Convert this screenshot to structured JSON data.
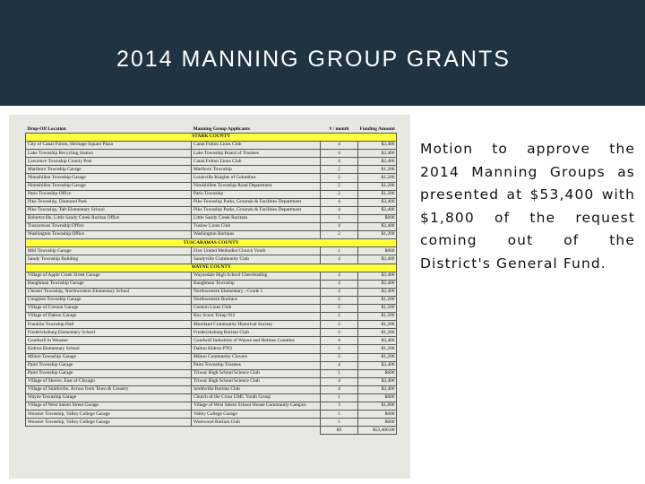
{
  "slide": {
    "title": "2014 MANNING GROUP GRANTS",
    "motion": "Motion to approve the 2014 Manning Groups as presented at $53,400 with $1,800 of the request coming out of the District's General Fund.",
    "colors": {
      "header_bg": "#1f3340",
      "sheet_bg": "#e8e8e2",
      "section_highlight": "#ffff3a"
    }
  },
  "table": {
    "headers": [
      "Drop-Off Location",
      "Manning Group Applicants",
      "# / month",
      "Funding Amount"
    ],
    "sections": [
      {
        "name": "STARK COUNTY",
        "rows": [
          [
            "City of Canal Fulton, Heritage Square Plaza",
            "Canal Fulton Lions Club",
            "4",
            "$2,400"
          ],
          [
            "Lake Township Recycling Station",
            "Lake Township Board of Trustees",
            "4",
            "$2,400"
          ],
          [
            "Lawrence Township County Post",
            "Canal Fulton Lions Club",
            "4",
            "$2,400"
          ],
          [
            "Marlboro Township Garage",
            "Marlboro Township",
            "2",
            "$1,200"
          ],
          [
            "Nimishillen Township Garage",
            "Louisville Knights of Columbus",
            "2",
            "$1,200"
          ],
          [
            "Nimishillen Township Garage",
            "Nimishillen Township Road Department",
            "2",
            "$1,200"
          ],
          [
            "Paris Township Office",
            "Paris Township",
            "2",
            "$1,200"
          ],
          [
            "Pike Township, Diamond Park",
            "Pike Township Parks, Grounds & Facilities Department",
            "4",
            "$2,400"
          ],
          [
            "Pike Township, Taft Elementary School",
            "Pike Township Parks, Grounds & Facilities Department",
            "4",
            "$2,400"
          ],
          [
            "Robertsville, Little Sandy Creek Ruritan Office",
            "Little Sandy Creek Ruritans",
            "1",
            "$600"
          ],
          [
            "Tuscarawas Township Office",
            "Tuslaw Lions Club",
            "4",
            "$2,400"
          ],
          [
            "Washington Township Office",
            "Washington Ruritans",
            "2",
            "$1,200"
          ]
        ]
      },
      {
        "name": "TUSCARAWAS COUNTY",
        "rows": [
          [
            "Mill Township Garage",
            "First United Methodist Church Youth",
            "1",
            "$600"
          ],
          [
            "Sandy Township Building",
            "Sandyville Community Club",
            "4",
            "$2,400"
          ]
        ]
      },
      {
        "name": "WAYNE COUNTY",
        "rows": [
          [
            "Village of Apple Creek Street Garage",
            "Waynedale High School Cheerleading",
            "4",
            "$2,400"
          ],
          [
            "Baughman Township Garage",
            "Baughman Township",
            "4",
            "$2,400"
          ],
          [
            "Chester Township, Northwestern Elementary School",
            "Northwestern Elementary - Grade 5",
            "4",
            "$2,400"
          ],
          [
            "Congress Township Garage",
            "Northwestern Ruritans",
            "2",
            "$1,200"
          ],
          [
            "Village of Creston Garage",
            "Creston Lions Club",
            "2",
            "$1,200"
          ],
          [
            "Village of Dalton Garage",
            "Boy Scout Troop 922",
            "2",
            "$1,200"
          ],
          [
            "Franklin Township Hall",
            "Moreland Community Historical Society",
            "2",
            "$1,200"
          ],
          [
            "Fredericksburg Elementary School",
            "Fredericksburg Ruritan Club",
            "2",
            "$1,200"
          ],
          [
            "Goodwill in Wooster",
            "Goodwill Industries of Wayne and Holmes Counties",
            "4",
            "$2,400"
          ],
          [
            "Kidron Elementary School",
            "Dalton Kidron PTO",
            "2",
            "$1,200"
          ],
          [
            "Milton Township Garage",
            "Milton Community Clovers",
            "2",
            "$1,200"
          ],
          [
            "Paint Township Garage",
            "Paint Township Trustees",
            "4",
            "$2,400"
          ],
          [
            "Paint Township Garage",
            "Triway High School Science Club",
            "1",
            "$600"
          ],
          [
            "Village of Shreve, East of Chicago",
            "Triway High School Science Club",
            "4",
            "$2,400"
          ],
          [
            "Village of Smithville, Across from Town & Country",
            "Smithville Ruritan Club",
            "4",
            "$2,400"
          ],
          [
            "Wayne Township Garage",
            "Church of the Cross UMC Youth Group",
            "1",
            "$600"
          ],
          [
            "Village of West Salem Street Garage",
            "Village of West Salem School House Community Campus",
            "3",
            "$1,800"
          ],
          [
            "Wooster Township, Valley College Garage",
            "Valley College Garage",
            "1",
            "$600"
          ],
          [
            "Wooster Township, Valley College Garage",
            "Westwood Ruritan Club",
            "1",
            "$600"
          ]
        ]
      }
    ],
    "totals": {
      "count": "89",
      "amount": "$53,400.00"
    }
  }
}
